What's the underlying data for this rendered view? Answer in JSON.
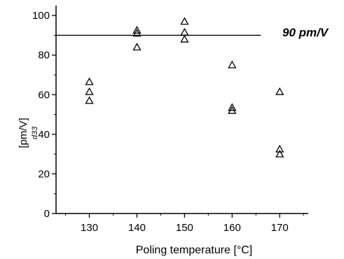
{
  "chart_data": {
    "type": "scatter",
    "title": "",
    "xlabel": "Poling temperature [°C]",
    "ylabel": "[pm/V]",
    "ylabel_symbol": "d33",
    "xlim": [
      123,
      176
    ],
    "ylim": [
      0,
      105
    ],
    "xticks": [
      130,
      140,
      150,
      160,
      170
    ],
    "yticks": [
      0,
      20,
      40,
      60,
      80,
      100
    ],
    "grid": false,
    "marker": "open-triangle",
    "series": [
      {
        "points": [
          {
            "x": 130,
            "y": 66.5
          },
          {
            "x": 130,
            "y": 61.5
          },
          {
            "x": 130,
            "y": 57
          },
          {
            "x": 140,
            "y": 92.5
          },
          {
            "x": 140,
            "y": 91
          },
          {
            "x": 140,
            "y": 84
          },
          {
            "x": 150,
            "y": 97
          },
          {
            "x": 150,
            "y": 91.5
          },
          {
            "x": 150,
            "y": 88
          },
          {
            "x": 160,
            "y": 75
          },
          {
            "x": 160,
            "y": 53.5
          },
          {
            "x": 160,
            "y": 52
          },
          {
            "x": 170,
            "y": 61.5
          },
          {
            "x": 170,
            "y": 32.5
          },
          {
            "x": 170,
            "y": 30
          }
        ]
      }
    ],
    "reference_line": {
      "y": 90,
      "x_from": 123,
      "x_to": 166,
      "label": "90 pm/V"
    }
  }
}
